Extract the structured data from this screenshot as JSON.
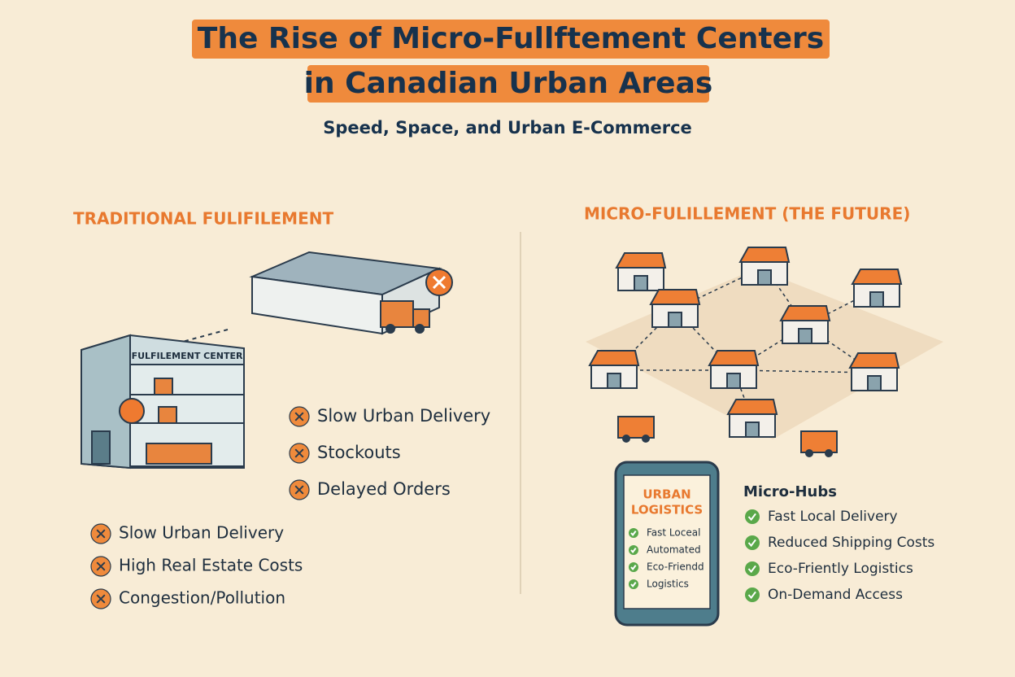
{
  "header": {
    "title_lines": [
      "The Rise of Micro-Fullftement Centers",
      "in Canadian Urban Areas"
    ],
    "subtitle": "Speed, Space, and Urban E-Commerce"
  },
  "traditional": {
    "heading": "TRADITIONAL FULIFILEMENT",
    "building_sign": "FULFILEMENT CENTER",
    "problems": [
      "Slow Urban Delivery",
      "Stockouts",
      "Delayed Orders"
    ],
    "impacts": [
      "Slow Urban Delivery",
      "High Real Estate Costs",
      "Congestion/Pollution"
    ]
  },
  "micro": {
    "heading": "MICRO-FULILLEMENT (THE FUTURE)",
    "phone": {
      "title_lines": [
        "URBAN",
        "LOGISTICS"
      ],
      "items": [
        "Fast Loceal",
        "Automated",
        "Eco-Friendd",
        "Logistics"
      ]
    },
    "hubs": {
      "title": "Micro-Hubs",
      "items": [
        "Fast Local Delivery",
        "Reduced Shipping Costs",
        "Eco-Friently Logistics",
        "On-Demand Access"
      ]
    }
  }
}
